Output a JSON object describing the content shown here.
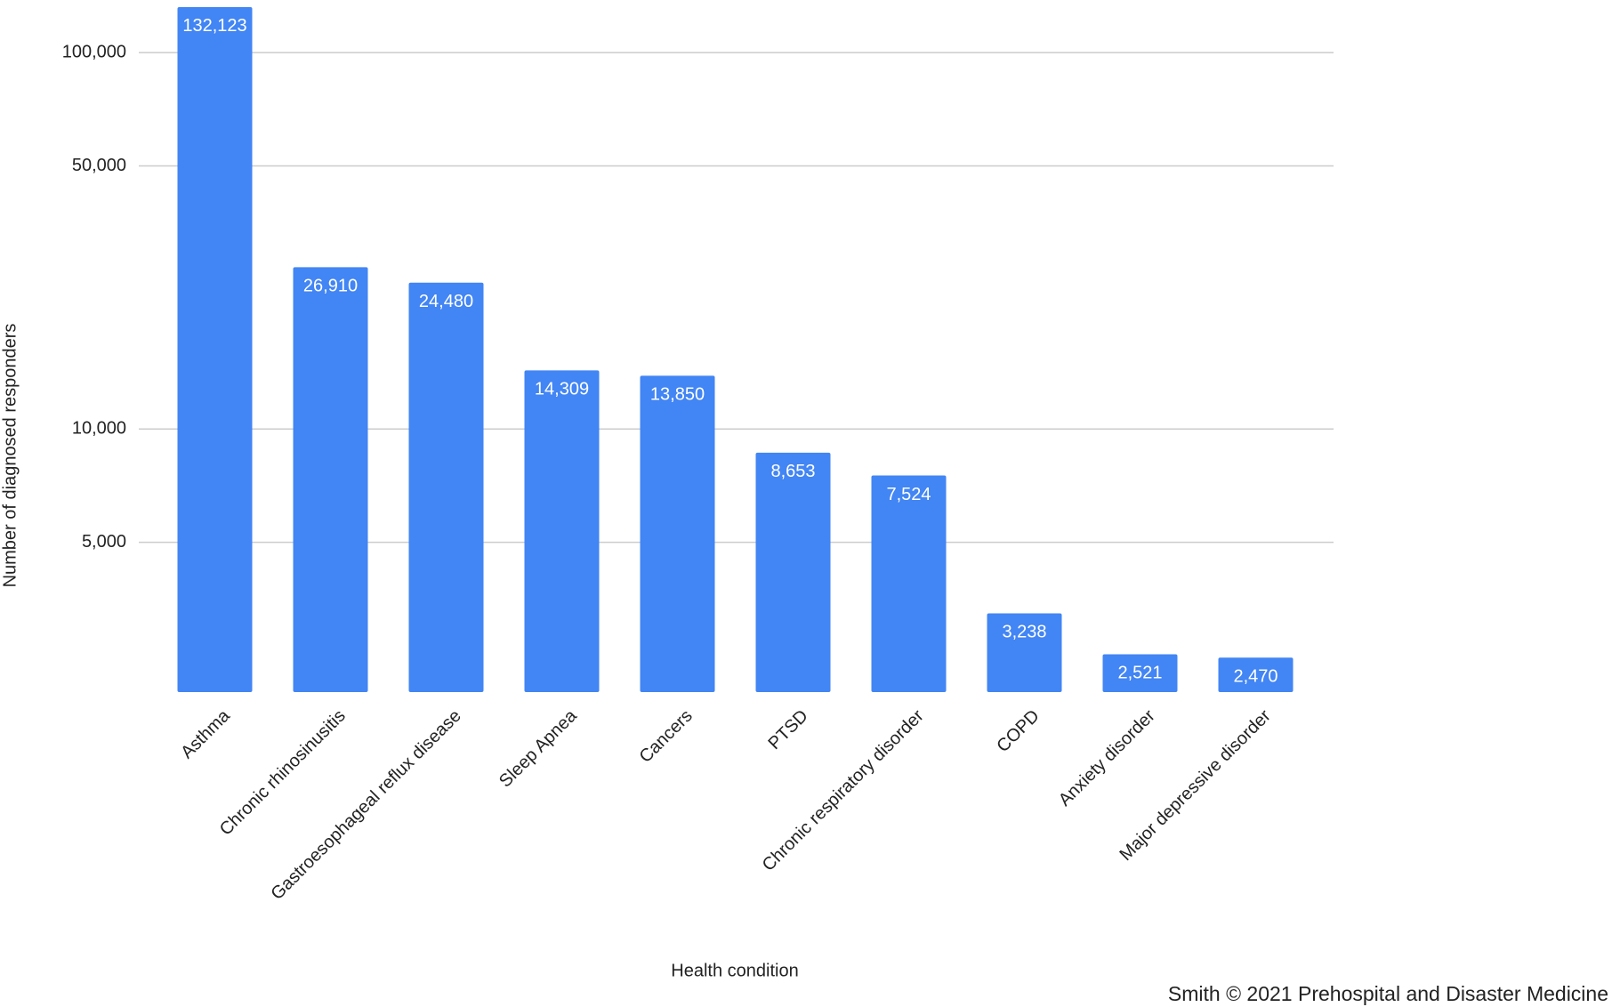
{
  "chart_data": {
    "type": "bar",
    "categories": [
      "Asthma",
      "Chronic rhinosinusitis",
      "Gastroesophageal reflux disease",
      "Sleep Apnea",
      "Cancers",
      "PTSD",
      "Chronic respiratory disorder",
      "COPD",
      "Anxiety disorder",
      "Major depressive disorder"
    ],
    "values": [
      132123,
      26910,
      24480,
      14309,
      13850,
      8653,
      7524,
      3238,
      2521,
      2470
    ],
    "value_labels": [
      "132,123",
      "26,910",
      "24,480",
      "14,309",
      "13,850",
      "8,653",
      "7,524",
      "3,238",
      "2,521",
      "2,470"
    ],
    "color": "#4285f4",
    "x_label": "Health condition",
    "y_label": "Number of diagnosed responders",
    "log_scale": true,
    "ylim": [
      2000,
      135000
    ],
    "yticks": [
      {
        "value": 5000,
        "label": "5,000"
      },
      {
        "value": 10000,
        "label": "10,000"
      },
      {
        "value": 50000,
        "label": "50,000"
      },
      {
        "value": 100000,
        "label": "100,000"
      }
    ],
    "grid": true,
    "credit": "Smith © 2021 Prehospital and Disaster Medicine"
  }
}
